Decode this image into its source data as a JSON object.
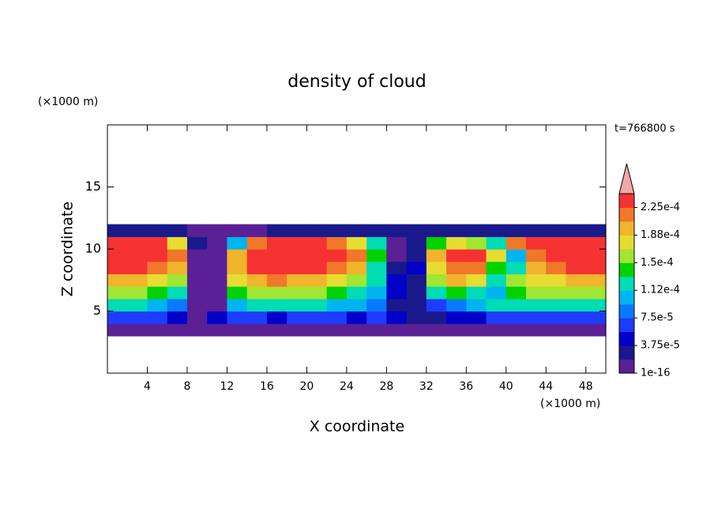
{
  "chart_data": {
    "type": "contour",
    "title": "density of cloud",
    "x_label": "X coordinate",
    "y_label": "Z coordinate",
    "x_unit": "(×1000 m)",
    "y_unit": "(×1000 m)",
    "annotation": "t=766800 s",
    "xlim": [
      0,
      50
    ],
    "ylim": [
      0,
      20
    ],
    "xticks": [
      4,
      8,
      12,
      16,
      20,
      24,
      28,
      32,
      36,
      40,
      44,
      48
    ],
    "yticks": [
      5,
      10,
      15
    ],
    "x": [
      1,
      3,
      5,
      7,
      9,
      11,
      13,
      15,
      17,
      19,
      21,
      23,
      25,
      27,
      29,
      31,
      33,
      35,
      37,
      39,
      41,
      43,
      45,
      47,
      49
    ],
    "y": [
      3.5,
      4.5,
      5.5,
      6.5,
      7.5,
      8.5,
      9.5,
      10.5,
      11.5
    ],
    "z": [
      [
        9e-06,
        9e-06,
        9e-06,
        9e-06,
        9e-06,
        9e-06,
        9e-06,
        9e-06,
        9e-06,
        9e-06,
        9e-06,
        9e-06,
        9e-06,
        9e-06,
        9e-06,
        9e-06,
        9e-06,
        9e-06,
        9e-06,
        9e-06,
        9e-06,
        9e-06,
        9e-06,
        9e-06,
        9e-06
      ],
      [
        6.6e-05,
        6.6e-05,
        6.6e-05,
        4.7e-05,
        9e-06,
        4.7e-05,
        6.6e-05,
        6.6e-05,
        4.7e-05,
        6.6e-05,
        6.6e-05,
        6.6e-05,
        4.7e-05,
        6.6e-05,
        4.7e-05,
        2.8e-05,
        2.8e-05,
        4.7e-05,
        4.7e-05,
        6.6e-05,
        6.6e-05,
        6.6e-05,
        6.6e-05,
        6.6e-05,
        6.6e-05
      ],
      [
        0.000122,
        0.000122,
        0.000103,
        8.4e-05,
        9e-06,
        9e-06,
        0.000103,
        0.000122,
        0.000122,
        0.000122,
        0.000122,
        0.000103,
        0.000103,
        8.4e-05,
        2.8e-05,
        2.8e-05,
        6.6e-05,
        8.4e-05,
        0.000103,
        0.000122,
        0.000122,
        0.000122,
        0.000122,
        0.000122,
        0.000122
      ],
      [
        0.000159,
        0.000159,
        0.000141,
        0.000122,
        9e-06,
        9e-06,
        0.000141,
        0.000159,
        0.000159,
        0.000159,
        0.000159,
        0.000141,
        0.000122,
        0.000103,
        4.7e-05,
        2.8e-05,
        0.000122,
        0.000141,
        0.000122,
        0.000103,
        0.000141,
        0.000159,
        0.000159,
        0.000159,
        0.000159
      ],
      [
        0.000197,
        0.000197,
        0.000178,
        0.000159,
        9e-06,
        9e-06,
        0.000178,
        0.000197,
        0.000216,
        0.000197,
        0.000197,
        0.000178,
        0.000159,
        0.000122,
        4.7e-05,
        2.8e-05,
        0.000159,
        0.000197,
        0.000178,
        0.000122,
        0.000159,
        0.000178,
        0.000178,
        0.000197,
        0.000197
      ],
      [
        0.000234,
        0.000234,
        0.000216,
        0.000197,
        9e-06,
        9e-06,
        0.000197,
        0.000234,
        0.000234,
        0.000234,
        0.000234,
        0.000216,
        0.000197,
        0.000122,
        2.8e-05,
        4.7e-05,
        0.000178,
        0.000216,
        0.000216,
        0.000141,
        0.000122,
        0.000197,
        0.000216,
        0.000234,
        0.000234
      ],
      [
        0.000234,
        0.000234,
        0.000234,
        0.000216,
        9e-06,
        9e-06,
        0.000197,
        0.000234,
        0.000234,
        0.000234,
        0.000234,
        0.000234,
        0.000216,
        0.000141,
        9e-06,
        2.8e-05,
        0.000197,
        0.000234,
        0.000234,
        0.000178,
        0.000103,
        0.000216,
        0.000234,
        0.000234,
        0.000234
      ],
      [
        0.000234,
        0.000234,
        0.000234,
        0.000178,
        2.8e-05,
        9e-06,
        0.000103,
        0.000216,
        0.000234,
        0.000234,
        0.000234,
        0.000216,
        0.000178,
        0.000122,
        9e-06,
        2.8e-05,
        0.000141,
        0.000178,
        0.000159,
        0.000122,
        0.000216,
        0.000234,
        0.000234,
        0.000234,
        0.000234
      ],
      [
        2.8e-05,
        2.8e-05,
        2.8e-05,
        2.8e-05,
        9e-06,
        9e-06,
        9e-06,
        9e-06,
        2.8e-05,
        2.8e-05,
        2.8e-05,
        2.8e-05,
        2.8e-05,
        2.8e-05,
        2.8e-05,
        2.8e-05,
        2.8e-05,
        2.8e-05,
        2.8e-05,
        2.8e-05,
        2.8e-05,
        2.8e-05,
        2.8e-05,
        2.8e-05,
        2.8e-05
      ]
    ],
    "levels": [
      1e-16,
      1.875e-05,
      3.75e-05,
      5.625e-05,
      7.5e-05,
      9.375e-05,
      0.0001125,
      0.00013125,
      0.00015,
      0.00016875,
      0.0001875,
      0.00020625,
      0.000225,
      0.00024375
    ],
    "colors": [
      "#5b2096",
      "#19198c",
      "#0000c8",
      "#1e3cff",
      "#0a78ff",
      "#00b4f0",
      "#00dcb4",
      "#00d200",
      "#a0e632",
      "#e6dc32",
      "#f0b42d",
      "#f07828",
      "#f53232"
    ],
    "extend_color": "#f4a6a6",
    "colorbar_ticks": [
      {
        "value": 1e-16,
        "label": "1e-16"
      },
      {
        "value": 3.75e-05,
        "label": "3.75e-5"
      },
      {
        "value": 7.5e-05,
        "label": "7.5e-5"
      },
      {
        "value": 0.0001125,
        "label": "1.12e-4"
      },
      {
        "value": 0.00015,
        "label": "1.5e-4"
      },
      {
        "value": 0.0001875,
        "label": "1.88e-4"
      },
      {
        "value": 0.000225,
        "label": "2.25e-4"
      }
    ]
  }
}
